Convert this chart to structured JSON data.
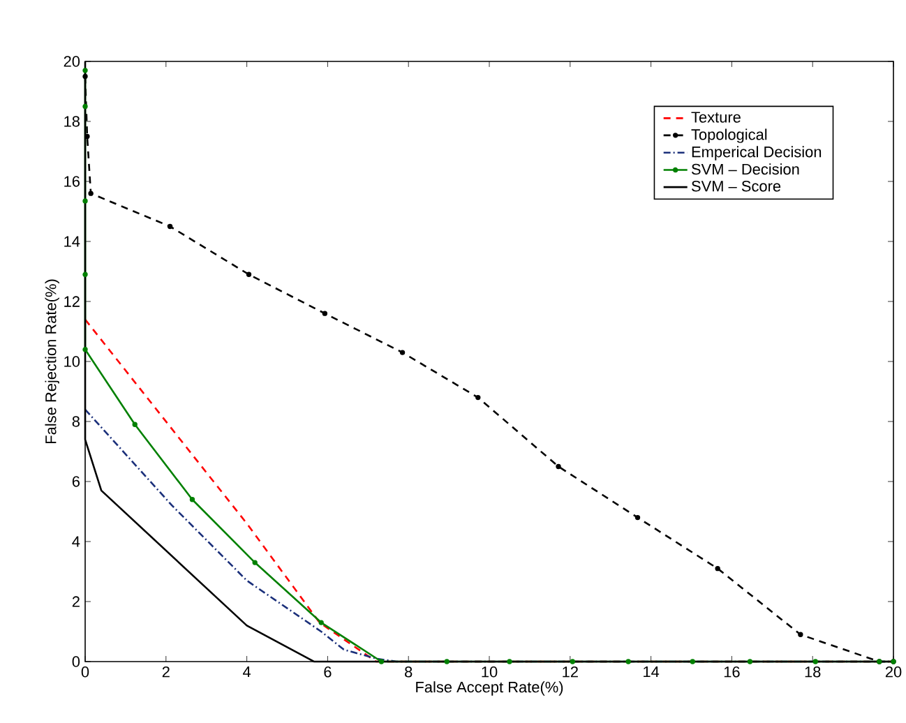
{
  "chart_data": {
    "type": "line",
    "xlabel": "False Accept Rate(%)",
    "ylabel": "False Rejection Rate(%)",
    "xlim": [
      0,
      20
    ],
    "ylim": [
      0,
      20
    ],
    "xticks": [
      0,
      2,
      4,
      6,
      8,
      10,
      12,
      14,
      16,
      18,
      20
    ],
    "yticks": [
      0,
      2,
      4,
      6,
      8,
      10,
      12,
      14,
      16,
      18,
      20
    ],
    "grid": false,
    "legend": "top right",
    "series": [
      {
        "name": "Texture",
        "color": "#ff0000",
        "line_style": "dashed",
        "marker": "none",
        "x": [
          0,
          4,
          5.8,
          7.2,
          20
        ],
        "values": [
          11.4,
          4.6,
          1.3,
          0,
          0
        ]
      },
      {
        "name": "Topological",
        "color": "#000000",
        "line_style": "dashed",
        "marker": "circle",
        "x": [
          0,
          0.05,
          0.14,
          2.1,
          4.05,
          5.93,
          7.85,
          9.72,
          11.71,
          13.67,
          15.65,
          17.7,
          19.65,
          20
        ],
        "values": [
          19.5,
          17.5,
          15.6,
          14.5,
          12.9,
          11.6,
          10.3,
          8.8,
          6.5,
          4.8,
          3.1,
          0.9,
          0,
          0
        ]
      },
      {
        "name": "Emperical Decision",
        "color": "#1a2f7a",
        "line_style": "dashdot",
        "marker": "none",
        "x": [
          0,
          2.15,
          4,
          5.84,
          6.4,
          7.2,
          7.7,
          20
        ],
        "values": [
          8.4,
          5.2,
          2.7,
          1,
          0.4,
          0.1,
          0,
          0
        ]
      },
      {
        "name": "SVM – Decision",
        "color": "#008000",
        "line_style": "solid",
        "marker": "circle",
        "x": [
          0,
          0,
          0,
          0,
          0,
          1.23,
          2.65,
          4.2,
          5.84,
          7.33,
          8.95,
          10.5,
          12.06,
          13.44,
          15.03,
          16.45,
          18.07,
          19.65,
          20
        ],
        "values": [
          19.7,
          18.5,
          15.35,
          12.9,
          10.4,
          7.9,
          5.4,
          3.3,
          1.3,
          0,
          0,
          0,
          0,
          0,
          0,
          0,
          0,
          0,
          0
        ]
      },
      {
        "name": "SVM – Score",
        "color": "#000000",
        "line_style": "solid",
        "marker": "none",
        "x": [
          0,
          0,
          0.4,
          4,
          5.66,
          20
        ],
        "values": [
          20,
          7.4,
          5.7,
          1.2,
          0,
          0
        ]
      }
    ]
  }
}
